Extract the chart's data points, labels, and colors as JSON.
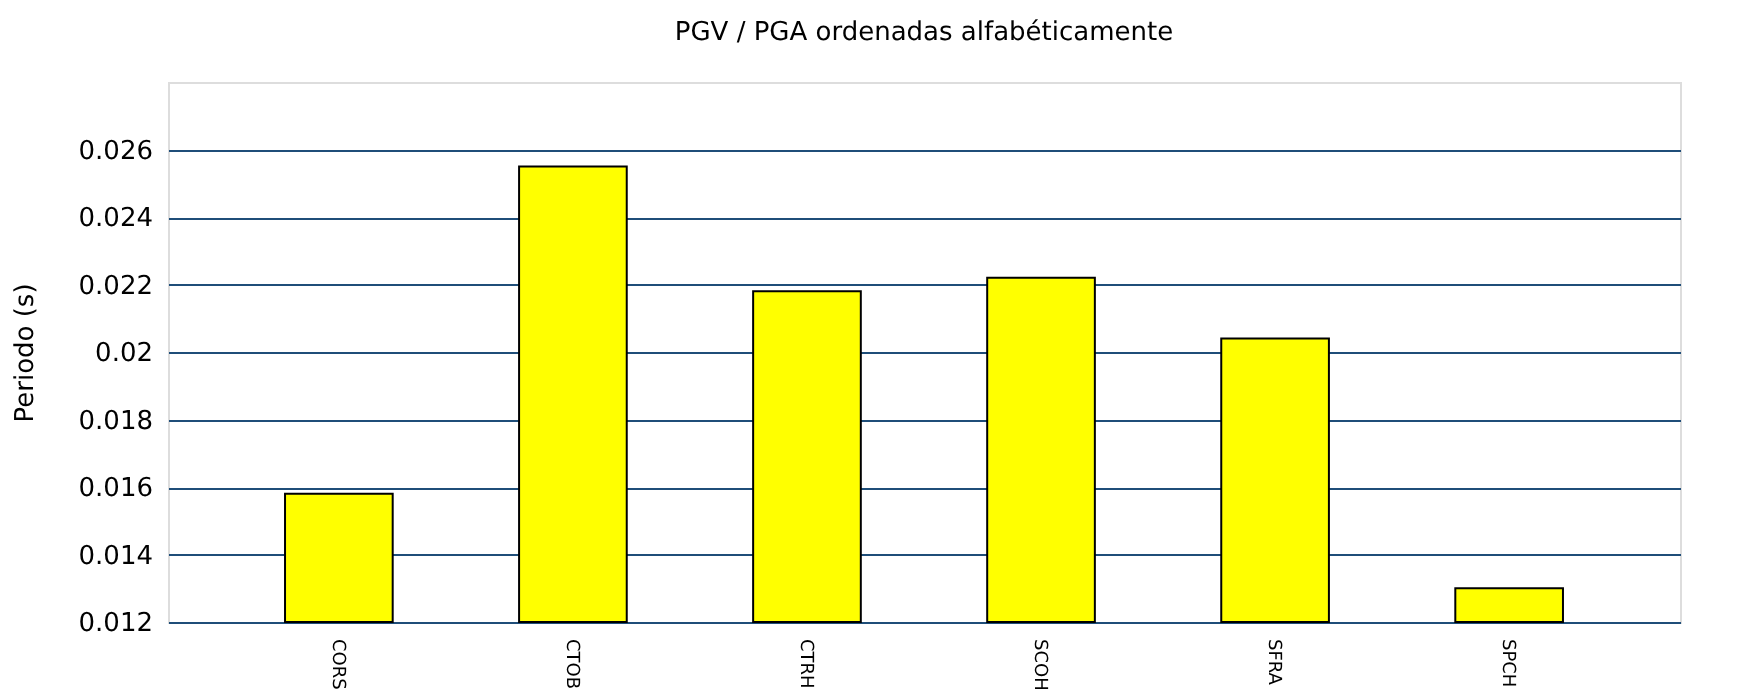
{
  "chart_data": {
    "type": "bar",
    "title": "PGV / PGA ordenadas alfabéticamente",
    "ylabel": "Periodo (s)",
    "categories": [
      "CORS",
      "CTOB",
      "CTRH",
      "SCOH",
      "SFRA",
      "SPCH"
    ],
    "values": [
      0.0158,
      0.0255,
      0.0218,
      0.0222,
      0.0204,
      0.013
    ],
    "color": "#ffff00",
    "ylim": [
      0.012,
      0.028
    ],
    "yticks": [
      0.012,
      0.014,
      0.016,
      0.018,
      0.02,
      0.022,
      0.024,
      0.026
    ],
    "grid": "y"
  }
}
